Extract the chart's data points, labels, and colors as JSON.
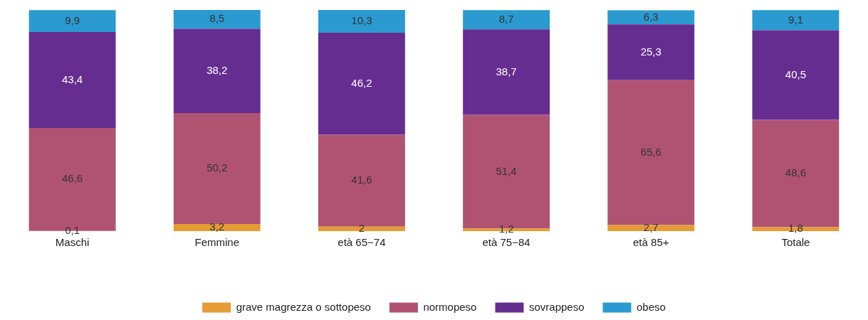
{
  "chart_data": {
    "type": "bar",
    "stacked": true,
    "legend": "bottom",
    "grid": false,
    "categories": [
      "Maschi",
      "Femmine",
      "età 65−74",
      "età 75−84",
      "età 85+",
      "Totale"
    ],
    "series": [
      {
        "name": "grave magrezza o sottopeso",
        "color": "#e69c34",
        "values": [
          0.1,
          3.2,
          2,
          1.2,
          2.7,
          1.8
        ],
        "value_labels": [
          "0,1",
          "3,2",
          "2",
          "1,2",
          "2,7",
          "1,8"
        ]
      },
      {
        "name": "normopeso",
        "color": "#b05373",
        "values": [
          46.6,
          50.2,
          41.6,
          51.4,
          65.6,
          48.6
        ],
        "value_labels": [
          "46,6",
          "50,2",
          "41,6",
          "51,4",
          "65,6",
          "48,6"
        ]
      },
      {
        "name": "sovrappeso",
        "color": "#662d91",
        "values": [
          43.4,
          38.2,
          46.2,
          38.7,
          25.3,
          40.5
        ],
        "value_labels": [
          "43,4",
          "38,2",
          "46,2",
          "38,7",
          "25,3",
          "40,5"
        ]
      },
      {
        "name": "obeso",
        "color": "#2a9ad0",
        "values": [
          9.9,
          8.5,
          10.3,
          8.7,
          6.3,
          9.1
        ],
        "value_labels": [
          "9,9",
          "8,5",
          "10,3",
          "8,7",
          "6,3",
          "9,1"
        ]
      }
    ]
  }
}
